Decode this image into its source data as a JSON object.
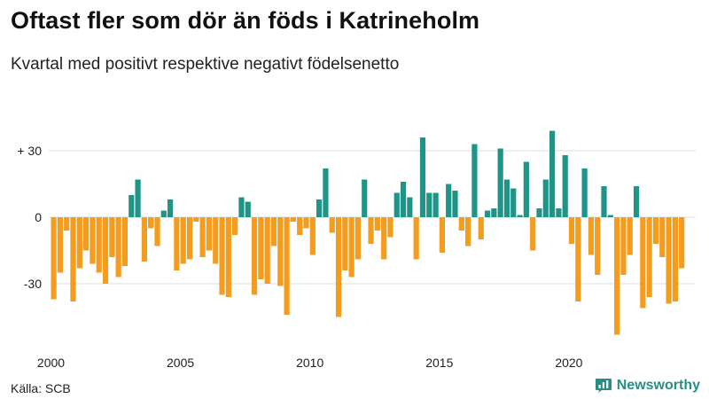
{
  "title": "Oftast fler som dör än föds i Katrineholm",
  "subtitle": "Kvartal med positivt respektive negativt födelsenetto",
  "source": "Källa: SCB",
  "brand": "Newsworthy",
  "colors": {
    "positive": "#1f9487",
    "negative": "#f39c1d",
    "grid": "#dddddd",
    "brand": "#2a8c82"
  },
  "chart_data": {
    "type": "bar",
    "title": "Oftast fler som dör än föds i Katrineholm",
    "subtitle": "Kvartal med positivt respektive negativt födelsenetto",
    "xlabel": "",
    "ylabel": "",
    "ylim": [
      -54,
      40
    ],
    "yticks": [
      {
        "value": 30,
        "label": "+ 30"
      },
      {
        "value": 0,
        "label": "0"
      },
      {
        "value": -30,
        "label": "-30"
      }
    ],
    "xticks": [
      {
        "value": 2000,
        "label": "2000"
      },
      {
        "value": 2005,
        "label": "2005"
      },
      {
        "value": 2010,
        "label": "2010"
      },
      {
        "value": 2015,
        "label": "2015"
      },
      {
        "value": 2020,
        "label": "2020"
      }
    ],
    "start_year": 2000,
    "quarters_per_year": 4,
    "values": [
      -37,
      -25,
      -6,
      -38,
      -23,
      -15,
      -21,
      -25,
      -30,
      -18,
      -27,
      -22,
      10,
      17,
      -20,
      -5,
      -13,
      3,
      8,
      -24,
      -21,
      -19,
      -2,
      -18,
      -15,
      -21,
      -35,
      -36,
      -8,
      9,
      7,
      -35,
      -28,
      -30,
      -13,
      -31,
      -44,
      -2,
      -8,
      -5,
      -17,
      8,
      22,
      -7,
      -45,
      -24,
      -27,
      -19,
      17,
      -12,
      -6,
      -19,
      -9,
      11,
      16,
      9,
      -19,
      36,
      11,
      11,
      -16,
      15,
      12,
      -6,
      -13,
      33,
      -10,
      3,
      4,
      31,
      17,
      13,
      1,
      25,
      -15,
      4,
      17,
      39,
      4,
      28,
      -12,
      -38,
      22,
      -17,
      -26,
      14,
      1,
      -53,
      -26,
      -17,
      14,
      -41,
      -36,
      -12,
      -18,
      -39,
      -38,
      -23
    ]
  }
}
